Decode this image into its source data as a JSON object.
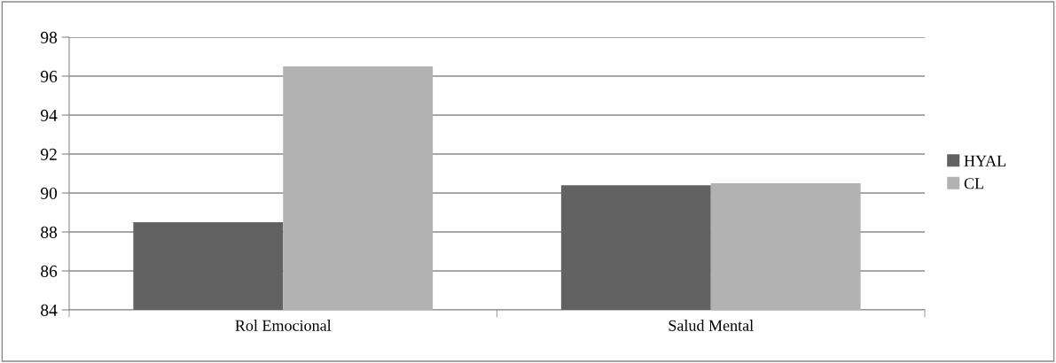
{
  "chart_data": {
    "type": "bar",
    "categories": [
      "Rol Emocional",
      "Salud Mental"
    ],
    "series": [
      {
        "name": "HYAL",
        "color": "#626262",
        "values": [
          88.5,
          90.4
        ]
      },
      {
        "name": "CL",
        "color": "#b2b2b2",
        "values": [
          96.5,
          90.5
        ]
      }
    ],
    "ylim": [
      84,
      98
    ],
    "yticks": [
      84,
      86,
      88,
      90,
      92,
      94,
      96,
      98
    ],
    "grid": "y",
    "legend": "right"
  }
}
